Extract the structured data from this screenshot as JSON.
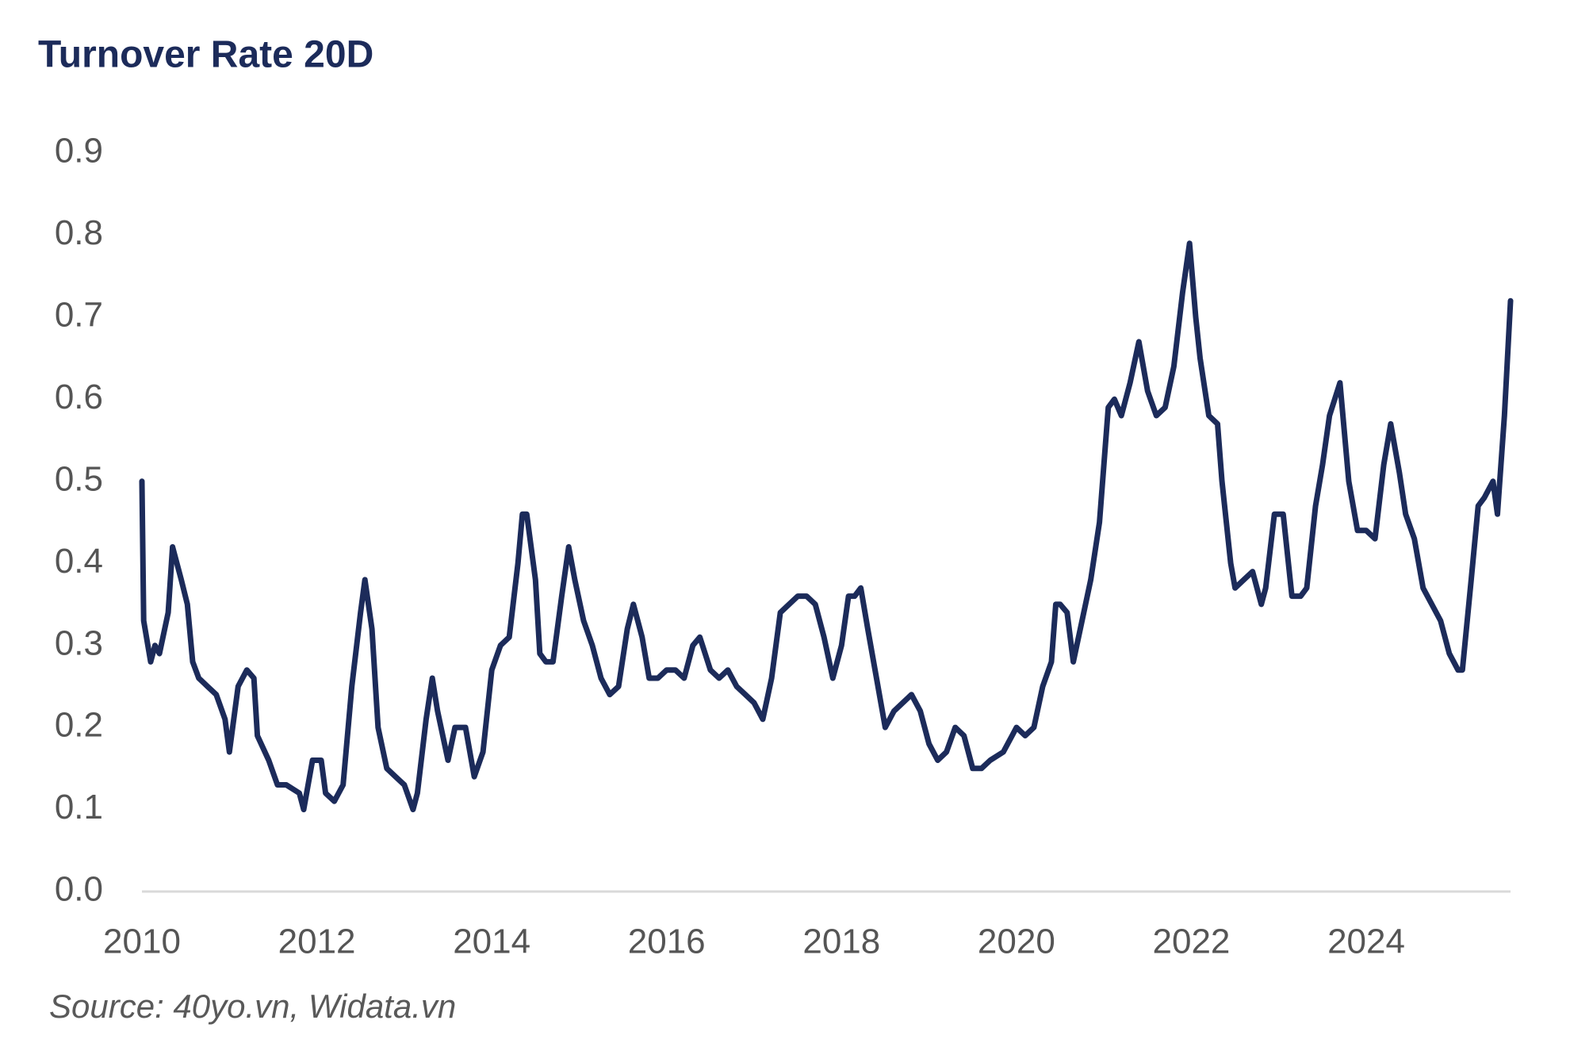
{
  "chart_data": {
    "type": "line",
    "title": "Turnover Rate 20D",
    "source": "Source: 40yo.vn, Widata.vn",
    "series": [
      {
        "name": "Turnover Rate 20D",
        "color": "#1c2b5a",
        "x": [
          2010.0,
          2010.02,
          2010.1,
          2010.15,
          2010.2,
          2010.3,
          2010.35,
          2010.45,
          2010.52,
          2010.58,
          2010.65,
          2010.75,
          2010.85,
          2010.95,
          2011.0,
          2011.1,
          2011.2,
          2011.28,
          2011.32,
          2011.45,
          2011.55,
          2011.65,
          2011.8,
          2011.85,
          2011.95,
          2012.05,
          2012.1,
          2012.2,
          2012.3,
          2012.4,
          2012.5,
          2012.55,
          2012.63,
          2012.7,
          2012.8,
          2012.9,
          2013.0,
          2013.1,
          2013.15,
          2013.25,
          2013.32,
          2013.38,
          2013.5,
          2013.58,
          2013.7,
          2013.8,
          2013.9,
          2014.0,
          2014.1,
          2014.2,
          2014.3,
          2014.35,
          2014.4,
          2014.5,
          2014.55,
          2014.62,
          2014.7,
          2014.8,
          2014.88,
          2014.95,
          2015.05,
          2015.15,
          2015.25,
          2015.35,
          2015.45,
          2015.55,
          2015.62,
          2015.72,
          2015.8,
          2015.9,
          2016.0,
          2016.1,
          2016.2,
          2016.3,
          2016.38,
          2016.5,
          2016.6,
          2016.7,
          2016.8,
          2016.9,
          2017.0,
          2017.1,
          2017.2,
          2017.3,
          2017.4,
          2017.5,
          2017.6,
          2017.7,
          2017.8,
          2017.9,
          2018.0,
          2018.08,
          2018.15,
          2018.22,
          2018.3,
          2018.4,
          2018.5,
          2018.6,
          2018.7,
          2018.8,
          2018.9,
          2019.0,
          2019.1,
          2019.2,
          2019.3,
          2019.4,
          2019.5,
          2019.6,
          2019.7,
          2019.85,
          2019.95,
          2020.0,
          2020.1,
          2020.2,
          2020.3,
          2020.4,
          2020.45,
          2020.5,
          2020.58,
          2020.65,
          2020.75,
          2020.85,
          2020.95,
          2021.05,
          2021.12,
          2021.2,
          2021.3,
          2021.4,
          2021.5,
          2021.6,
          2021.7,
          2021.8,
          2021.9,
          2021.98,
          2022.05,
          2022.1,
          2022.2,
          2022.3,
          2022.35,
          2022.45,
          2022.5,
          2022.6,
          2022.7,
          2022.75,
          2022.8,
          2022.85,
          2022.95,
          2023.05,
          2023.15,
          2023.25,
          2023.32,
          2023.42,
          2023.5,
          2023.58,
          2023.7,
          2023.8,
          2023.9,
          2024.0,
          2024.1,
          2024.2,
          2024.28,
          2024.38,
          2024.45,
          2024.55,
          2024.65,
          2024.75,
          2024.85,
          2024.95,
          2025.05,
          2025.1,
          2025.2,
          2025.28,
          2025.35,
          2025.45,
          2025.5,
          2025.58,
          2025.65
        ],
        "values": [
          0.5,
          0.33,
          0.28,
          0.3,
          0.29,
          0.34,
          0.42,
          0.38,
          0.35,
          0.28,
          0.26,
          0.25,
          0.24,
          0.21,
          0.17,
          0.25,
          0.27,
          0.26,
          0.19,
          0.16,
          0.13,
          0.13,
          0.12,
          0.1,
          0.16,
          0.16,
          0.12,
          0.11,
          0.13,
          0.25,
          0.34,
          0.38,
          0.32,
          0.2,
          0.15,
          0.14,
          0.13,
          0.1,
          0.12,
          0.21,
          0.26,
          0.22,
          0.16,
          0.2,
          0.2,
          0.14,
          0.17,
          0.27,
          0.3,
          0.31,
          0.4,
          0.46,
          0.46,
          0.38,
          0.29,
          0.28,
          0.28,
          0.36,
          0.42,
          0.38,
          0.33,
          0.3,
          0.26,
          0.24,
          0.25,
          0.32,
          0.35,
          0.31,
          0.26,
          0.26,
          0.27,
          0.27,
          0.26,
          0.3,
          0.31,
          0.27,
          0.26,
          0.27,
          0.25,
          0.24,
          0.23,
          0.21,
          0.26,
          0.34,
          0.35,
          0.36,
          0.36,
          0.35,
          0.31,
          0.26,
          0.3,
          0.36,
          0.36,
          0.37,
          0.32,
          0.26,
          0.2,
          0.22,
          0.23,
          0.24,
          0.22,
          0.18,
          0.16,
          0.17,
          0.2,
          0.19,
          0.15,
          0.15,
          0.16,
          0.17,
          0.19,
          0.2,
          0.19,
          0.2,
          0.25,
          0.28,
          0.35,
          0.35,
          0.34,
          0.28,
          0.33,
          0.38,
          0.45,
          0.59,
          0.6,
          0.58,
          0.62,
          0.67,
          0.61,
          0.58,
          0.59,
          0.64,
          0.73,
          0.79,
          0.7,
          0.65,
          0.58,
          0.57,
          0.5,
          0.4,
          0.37,
          0.38,
          0.39,
          0.37,
          0.35,
          0.37,
          0.46,
          0.46,
          0.36,
          0.36,
          0.37,
          0.47,
          0.52,
          0.58,
          0.62,
          0.5,
          0.44,
          0.44,
          0.43,
          0.52,
          0.57,
          0.51,
          0.46,
          0.43,
          0.37,
          0.35,
          0.33,
          0.29,
          0.27,
          0.27,
          0.38,
          0.47,
          0.48,
          0.5,
          0.46,
          0.58,
          0.72
        ]
      }
    ],
    "xlim": [
      2010,
      2025.65
    ],
    "xticks": [
      2010,
      2012,
      2014,
      2016,
      2018,
      2020,
      2022,
      2024
    ],
    "ylim": [
      0,
      0.9
    ],
    "yticks": [
      {
        "value": 0,
        "label": "0.0"
      },
      0.1,
      0.2,
      0.3,
      0.4,
      0.5,
      0.6,
      0.7,
      0.8,
      0.9
    ],
    "grid": false
  }
}
